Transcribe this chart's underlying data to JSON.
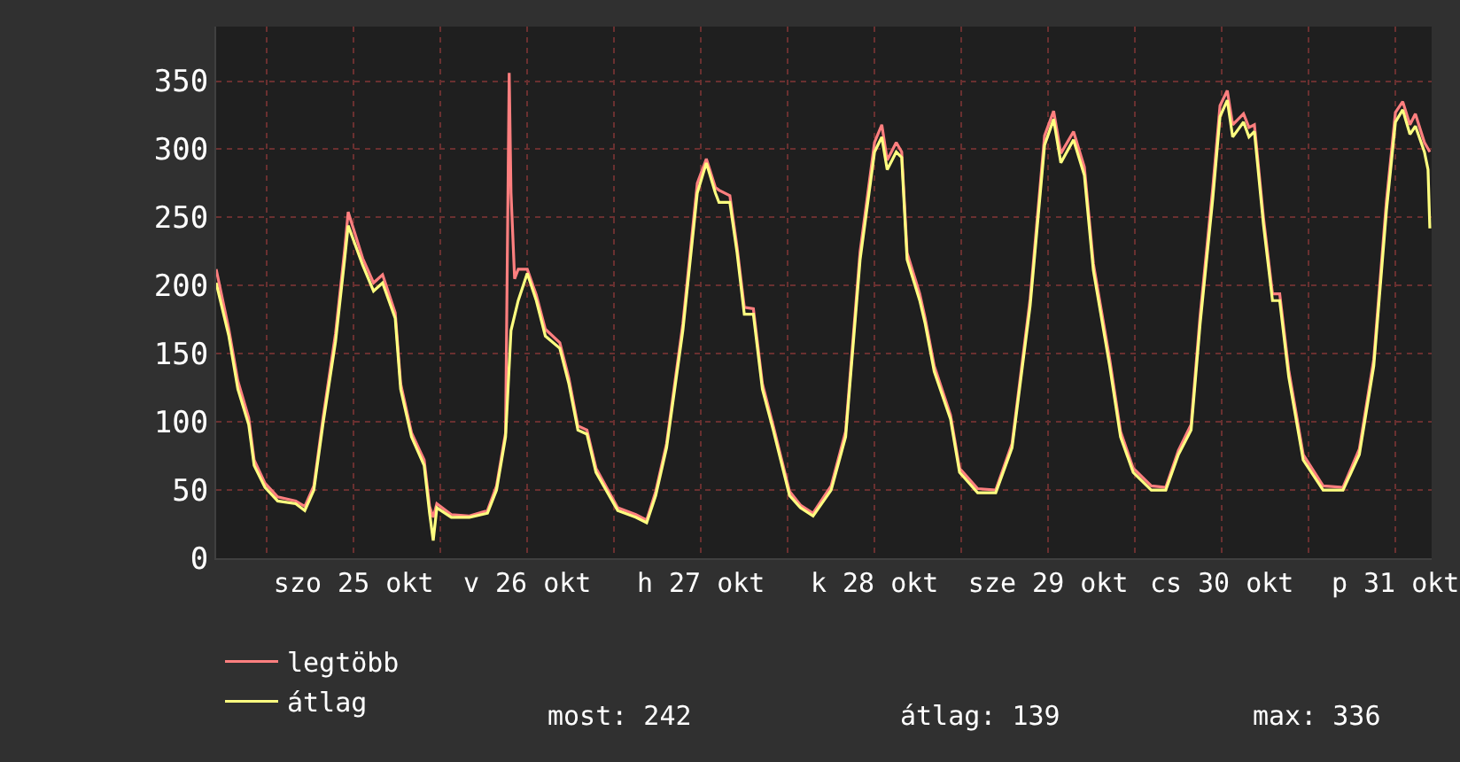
{
  "chart_data": {
    "type": "line",
    "xlim": [
      "--10-24T17:00",
      "--10-31T17:00"
    ],
    "xticks": [
      {
        "value": "--10-25T00:00",
        "label": null
      },
      {
        "value": "--10-25T12:00",
        "label": "szo 25 okt"
      },
      {
        "value": "--10-26T00:00",
        "label": null
      },
      {
        "value": "--10-26T12:00",
        "label": "v 26 okt"
      },
      {
        "value": "--10-27T00:00",
        "label": null
      },
      {
        "value": "--10-27T12:00",
        "label": "h 27 okt"
      },
      {
        "value": "--10-28T00:00",
        "label": null
      },
      {
        "value": "--10-28T12:00",
        "label": "k 28 okt"
      },
      {
        "value": "--10-29T00:00",
        "label": null
      },
      {
        "value": "--10-29T12:00",
        "label": "sze 29 okt"
      },
      {
        "value": "--10-30T00:00",
        "label": null
      },
      {
        "value": "--10-30T12:00",
        "label": "cs 30 okt"
      },
      {
        "value": "--10-31T00:00",
        "label": null
      },
      {
        "value": "--10-31T12:00",
        "label": "p 31 okt"
      }
    ],
    "ylim": [
      0,
      390
    ],
    "yticks": [
      0,
      50,
      100,
      150,
      200,
      250,
      300,
      350
    ],
    "grid": true,
    "legend": "bottom",
    "marker": "none",
    "line_style": "solid",
    "annotations": [
      "most: 242",
      "átlag: 139",
      "max: 336"
    ],
    "series": [
      {
        "name": "legtöbb",
        "color": "#ff7f7f",
        "x": [
          "--10-24T17:00",
          "--10-24T18:45",
          "--10-24T20:00",
          "--10-24T21:30",
          "--10-24T22:15",
          "--10-24T23:45",
          "--10-25T01:30",
          "--10-25T04:00",
          "--10-25T05:15",
          "--10-25T06:30",
          "--10-25T07:45",
          "--10-25T09:30",
          "--10-25T10:45",
          "--10-25T11:15",
          "--10-25T13:15",
          "--10-25T14:45",
          "--10-25T16:00",
          "--10-25T17:45",
          "--10-25T18:30",
          "--10-25T20:00",
          "--10-25T21:45",
          "--10-25T22:30",
          "--10-25T23:00",
          "--10-25T23:30",
          "--10-26T01:30",
          "--10-26T04:00",
          "--10-26T06:30",
          "--10-26T07:45",
          "--10-26T09:00",
          "--10-26T09:30",
          "--10-26T09:45",
          "--10-26T10:15",
          "--10-26T10:45",
          "--10-26T12:00",
          "--10-26T13:15",
          "--10-26T14:30",
          "--10-26T16:30",
          "--10-26T17:45",
          "--10-26T19:00",
          "--10-26T20:15",
          "--10-26T21:30",
          "--10-27T00:30",
          "--10-27T03:00",
          "--10-27T04:30",
          "--10-27T05:45",
          "--10-27T07:15",
          "--10-27T09:30",
          "--10-27T11:30",
          "--10-27T12:45",
          "--10-27T14:00",
          "--10-27T14:30",
          "--10-27T16:00",
          "--10-27T17:00",
          "--10-27T18:00",
          "--10-27T19:15",
          "--10-27T20:30",
          "--10-27T22:00",
          "--10-28T00:15",
          "--10-28T01:45",
          "--10-28T03:30",
          "--10-28T06:00",
          "--10-28T08:00",
          "--10-28T10:00",
          "--10-28T12:00",
          "--10-28T13:00",
          "--10-28T13:45",
          "--10-28T15:00",
          "--10-28T15:45",
          "--10-28T16:30",
          "--10-28T18:15",
          "--10-28T19:00",
          "--10-28T20:15",
          "--10-28T22:30",
          "--10-28T23:45",
          "--10-29T02:15",
          "--10-29T04:45",
          "--10-29T07:00",
          "--10-29T09:30",
          "--10-29T11:30",
          "--10-29T12:45",
          "--10-29T13:45",
          "--10-29T15:30",
          "--10-29T17:00",
          "--10-29T18:15",
          "--10-29T20:30",
          "--10-29T22:00",
          "--10-29T23:45",
          "--10-30T02:15",
          "--10-30T04:15",
          "--10-30T06:00",
          "--10-30T07:45",
          "--10-30T09:00",
          "--10-30T10:45",
          "--10-30T11:45",
          "--10-30T12:45",
          "--10-30T13:30",
          "--10-30T15:00",
          "--10-30T15:45",
          "--10-30T16:30",
          "--10-30T17:45",
          "--10-30T19:00",
          "--10-30T20:00",
          "--10-30T21:15",
          "--10-30T23:15",
          "--10-31T02:00",
          "--10-31T04:45",
          "--10-31T07:00",
          "--10-31T09:00",
          "--10-31T10:45",
          "--10-31T12:00",
          "--10-31T13:00",
          "--10-31T14:00",
          "--10-31T14:45",
          "--10-31T16:00",
          "--10-31T16:45"
        ],
        "values": [
          212,
          168,
          130,
          103,
          72,
          55,
          45,
          42,
          38,
          53,
          102,
          165,
          226,
          254,
          220,
          202,
          208,
          180,
          128,
          92,
          72,
          38,
          30,
          40,
          32,
          31,
          35,
          53,
          92,
          356,
          268,
          205,
          212,
          212,
          193,
          168,
          158,
          132,
          97,
          94,
          66,
          37,
          32,
          28,
          49,
          84,
          172,
          275,
          293,
          272,
          270,
          266,
          228,
          184,
          183,
          128,
          97,
          49,
          39,
          33,
          53,
          93,
          225,
          305,
          318,
          292,
          305,
          298,
          224,
          194,
          176,
          141,
          105,
          66,
          51,
          50,
          84,
          190,
          310,
          328,
          297,
          313,
          287,
          216,
          146,
          93,
          66,
          53,
          52,
          79,
          98,
          178,
          272,
          332,
          343,
          318,
          326,
          316,
          318,
          250,
          194,
          194,
          138,
          76,
          53,
          52,
          80,
          146,
          262,
          327,
          335,
          318,
          326,
          305,
          298
        ]
      },
      {
        "name": "átlag",
        "color": "#ffff80",
        "x": [
          "--10-24T17:00",
          "--10-24T18:45",
          "--10-24T20:00",
          "--10-24T21:30",
          "--10-24T22:15",
          "--10-24T23:45",
          "--10-25T01:30",
          "--10-25T04:00",
          "--10-25T05:15",
          "--10-25T06:30",
          "--10-25T07:45",
          "--10-25T09:30",
          "--10-25T10:45",
          "--10-25T11:15",
          "--10-25T13:15",
          "--10-25T14:45",
          "--10-25T16:00",
          "--10-25T17:45",
          "--10-25T18:30",
          "--10-25T20:00",
          "--10-25T21:45",
          "--10-25T22:30",
          "--10-25T23:00",
          "--10-25T23:30",
          "--10-26T01:30",
          "--10-26T04:00",
          "--10-26T06:30",
          "--10-26T07:45",
          "--10-26T09:00",
          "--10-26T09:45",
          "--10-26T10:45",
          "--10-26T12:00",
          "--10-26T13:15",
          "--10-26T14:30",
          "--10-26T16:30",
          "--10-26T17:45",
          "--10-26T19:00",
          "--10-26T20:15",
          "--10-26T21:30",
          "--10-27T00:30",
          "--10-27T03:00",
          "--10-27T04:30",
          "--10-27T05:45",
          "--10-27T07:15",
          "--10-27T09:30",
          "--10-27T11:30",
          "--10-27T12:45",
          "--10-27T14:00",
          "--10-27T14:30",
          "--10-27T16:00",
          "--10-27T17:00",
          "--10-27T18:00",
          "--10-27T19:15",
          "--10-27T20:30",
          "--10-27T22:00",
          "--10-28T00:15",
          "--10-28T01:45",
          "--10-28T03:30",
          "--10-28T06:00",
          "--10-28T08:00",
          "--10-28T10:00",
          "--10-28T12:00",
          "--10-28T13:00",
          "--10-28T13:45",
          "--10-28T15:00",
          "--10-28T15:45",
          "--10-28T16:30",
          "--10-28T18:15",
          "--10-28T19:00",
          "--10-28T20:15",
          "--10-28T22:30",
          "--10-28T23:45",
          "--10-29T02:15",
          "--10-29T04:45",
          "--10-29T07:00",
          "--10-29T09:30",
          "--10-29T11:30",
          "--10-29T12:45",
          "--10-29T13:45",
          "--10-29T15:30",
          "--10-29T17:00",
          "--10-29T18:15",
          "--10-29T20:30",
          "--10-29T22:00",
          "--10-29T23:45",
          "--10-30T02:15",
          "--10-30T04:15",
          "--10-30T06:00",
          "--10-30T07:45",
          "--10-30T09:00",
          "--10-30T10:45",
          "--10-30T11:45",
          "--10-30T12:45",
          "--10-30T13:30",
          "--10-30T15:00",
          "--10-30T15:45",
          "--10-30T16:30",
          "--10-30T17:45",
          "--10-30T19:00",
          "--10-30T20:00",
          "--10-30T21:15",
          "--10-30T23:15",
          "--10-31T02:00",
          "--10-31T04:45",
          "--10-31T07:00",
          "--10-31T09:00",
          "--10-31T10:45",
          "--10-31T12:00",
          "--10-31T13:00",
          "--10-31T14:00",
          "--10-31T14:45",
          "--10-31T16:00",
          "--10-31T16:30",
          "--10-31T16:45"
        ],
        "values": [
          202,
          163,
          124,
          98,
          68,
          52,
          42,
          40,
          35,
          50,
          98,
          159,
          219,
          244,
          215,
          196,
          202,
          176,
          124,
          89,
          68,
          33,
          13,
          37,
          30,
          30,
          33,
          50,
          89,
          167,
          189,
          209,
          189,
          163,
          154,
          128,
          94,
          91,
          63,
          35,
          30,
          26,
          46,
          81,
          167,
          268,
          290,
          268,
          261,
          261,
          224,
          179,
          179,
          124,
          94,
          46,
          37,
          31,
          50,
          89,
          219,
          298,
          309,
          285,
          298,
          294,
          219,
          189,
          172,
          137,
          102,
          63,
          48,
          48,
          81,
          185,
          303,
          322,
          290,
          307,
          281,
          211,
          141,
          89,
          63,
          50,
          50,
          76,
          94,
          172,
          264,
          324,
          336,
          309,
          320,
          309,
          313,
          245,
          189,
          189,
          133,
          72,
          50,
          50,
          76,
          141,
          255,
          320,
          329,
          311,
          317,
          298,
          285,
          242
        ]
      }
    ]
  }
}
